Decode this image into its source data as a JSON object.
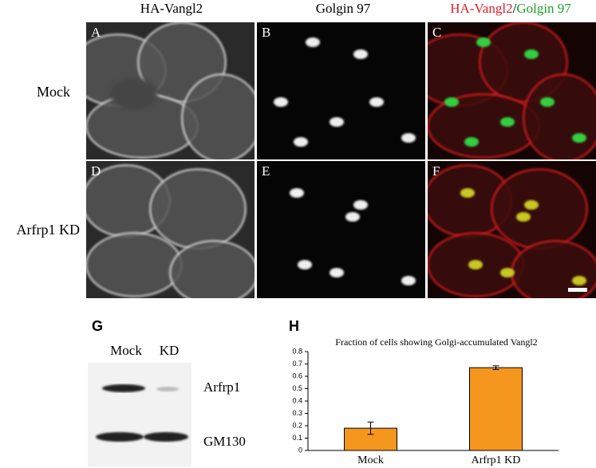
{
  "figure": {
    "column_headers": [
      "HA-Vangl2",
      "Golgin 97"
    ],
    "merged_header": [
      "HA-Vangl2",
      "/",
      "Golgin 97"
    ],
    "row_labels": [
      "Mock",
      "Arfrp1 KD"
    ],
    "panels": [
      "A",
      "B",
      "C",
      "D",
      "E",
      "F"
    ],
    "blot": {
      "label": "G",
      "lanes": [
        "Mock",
        "KD"
      ],
      "bands": [
        "Arfrp1",
        "GM130"
      ]
    }
  },
  "chart_data": {
    "type": "bar",
    "panel_label": "H",
    "title": "Fraction of cells showing Golgi-accumulated Vangl2",
    "categories": [
      "Mock",
      "Arfrp1 KD"
    ],
    "values": [
      0.18,
      0.67
    ],
    "errors": [
      0.05,
      0.015
    ],
    "color": "#f5961e",
    "ylim": [
      0,
      0.8
    ],
    "yticks": [
      0,
      0.1,
      0.2,
      0.3,
      0.4,
      0.5,
      0.6,
      0.7,
      0.8
    ]
  }
}
